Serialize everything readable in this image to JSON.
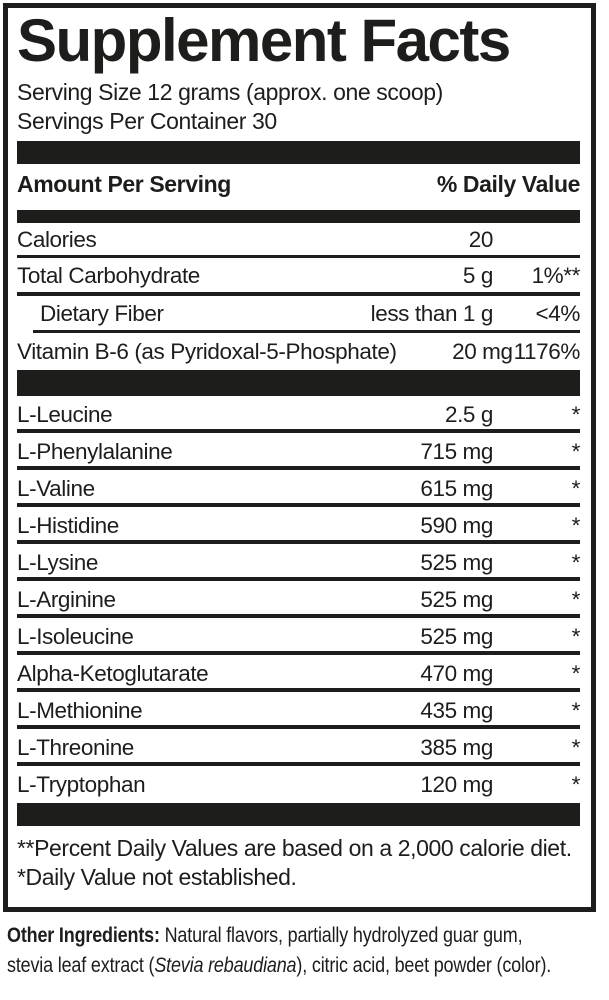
{
  "colors": {
    "ink": "#1d1d1b",
    "background": "#ffffff"
  },
  "panel": {
    "title": "Supplement Facts",
    "serving_size": "Serving Size 12 grams (approx. one scoop)",
    "servings_per_container": "Servings Per Container 30",
    "columns": {
      "amount_header": "Amount Per Serving",
      "dv_header": "% Daily Value"
    },
    "nutrients": [
      {
        "label": "Calories",
        "amount": "20",
        "dv": ""
      },
      {
        "label": "Total Carbohydrate",
        "amount": "5 g",
        "dv": "1%**"
      },
      {
        "label": "Dietary Fiber",
        "amount": "less than 1 g",
        "dv": "<4%"
      },
      {
        "label": "Vitamin B-6 (as Pyridoxal-5-Phosphate)",
        "amount": "20 mg",
        "dv": "1176%"
      }
    ],
    "aminos": [
      {
        "label": "L-Leucine",
        "amount": "2.5 g",
        "dv": "*"
      },
      {
        "label": "L-Phenylalanine",
        "amount": "715 mg",
        "dv": "*"
      },
      {
        "label": "L-Valine",
        "amount": "615 mg",
        "dv": "*"
      },
      {
        "label": "L-Histidine",
        "amount": "590 mg",
        "dv": "*"
      },
      {
        "label": "L-Lysine",
        "amount": "525 mg",
        "dv": "*"
      },
      {
        "label": "L-Arginine",
        "amount": "525 mg",
        "dv": "*"
      },
      {
        "label": "L-Isoleucine",
        "amount": "525 mg",
        "dv": "*"
      },
      {
        "label": "Alpha-Ketoglutarate",
        "amount": "470 mg",
        "dv": "*"
      },
      {
        "label": "L-Methionine",
        "amount": "435 mg",
        "dv": "*"
      },
      {
        "label": "L-Threonine",
        "amount": "385 mg",
        "dv": "*"
      },
      {
        "label": "L-Tryptophan",
        "amount": "120 mg",
        "dv": "*"
      }
    ],
    "footnotes": [
      "**Percent Daily Values are based on a 2,000 calorie diet.",
      "*Daily Value not established."
    ]
  },
  "other_ingredients": {
    "label": "Other Ingredients:",
    "line1_rest": " Natural flavors, partially hydrolyzed guar gum,",
    "line2_pre": "stevia leaf extract (",
    "line2_italic": "Stevia rebaudiana",
    "line2_post": "), citric acid, beet powder (color)."
  }
}
